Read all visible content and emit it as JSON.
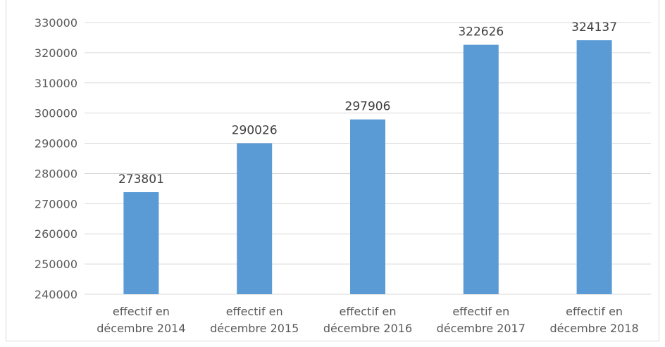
{
  "chart_data": {
    "type": "bar",
    "title": "",
    "xlabel": "",
    "ylabel": "",
    "ylim": [
      240000,
      330000
    ],
    "y_ticks": [
      330000,
      320000,
      310000,
      300000,
      290000,
      280000,
      270000,
      260000,
      250000,
      240000
    ],
    "categories": [
      [
        "effectif en",
        "décembre 2014"
      ],
      [
        "effectif en",
        "décembre 2015"
      ],
      [
        "effectif en",
        "décembre 2016"
      ],
      [
        "effectif en",
        "décembre 2017"
      ],
      [
        "effectif en",
        "décembre 2018"
      ]
    ],
    "values": [
      273801,
      290026,
      297906,
      322626,
      324137
    ],
    "data_labels": [
      "273801",
      "290026",
      "297906",
      "322626",
      "324137"
    ],
    "bar_color": "#5b9bd5",
    "grid": true,
    "legend": "none"
  }
}
